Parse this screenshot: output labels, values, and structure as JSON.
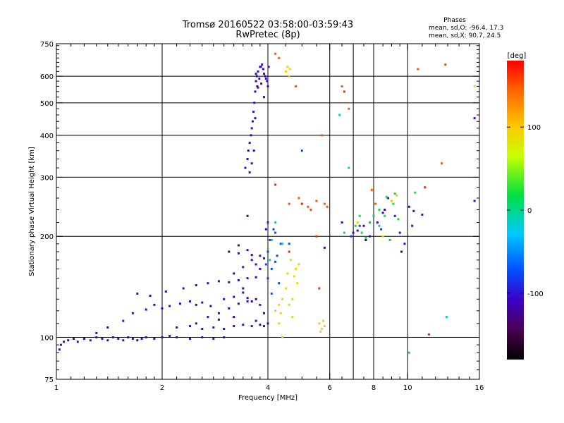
{
  "chart_data": {
    "type": "scatter",
    "title_line1": "Tromsø 20160522 03:58:00-03:59:43",
    "title_line2": "RwPretec (8p)",
    "info": {
      "heading": "Phases",
      "line_o": "mean, sd,O: -96.4, 17.3",
      "line_x": "mean, sd,X:  90.7, 24.5"
    },
    "xlabel": "Frequency [MHz]",
    "ylabel": "Stationary phase Virtual Height [km]",
    "xscale": "log",
    "yscale": "log",
    "xlim": [
      1,
      16
    ],
    "ylim": [
      75,
      750
    ],
    "xticks": [
      1,
      2,
      4,
      6,
      8,
      10,
      16
    ],
    "yticks": [
      75,
      100,
      200,
      300,
      400,
      500,
      600,
      750
    ],
    "xgrid": [
      2,
      4,
      6,
      7,
      8,
      10
    ],
    "ygrid": [
      100,
      200,
      300,
      400,
      500,
      600
    ],
    "grid": true,
    "colorbar": {
      "label": "[deg]",
      "range": [
        -180,
        180
      ],
      "ticks": [
        100,
        0,
        -100
      ],
      "colormap": "rainbow (black-purple-blue-cyan-green-yellow-orange-red)"
    },
    "series": [
      {
        "phase_deg": -105,
        "points": [
          [
            1.02,
            92
          ],
          [
            1.03,
            95
          ],
          [
            1.05,
            97
          ],
          [
            1.08,
            98
          ],
          [
            1.12,
            99
          ],
          [
            1.15,
            97
          ],
          [
            1.2,
            99
          ],
          [
            1.25,
            98
          ],
          [
            1.3,
            100
          ],
          [
            1.35,
            99
          ],
          [
            1.4,
            98
          ],
          [
            1.45,
            100
          ],
          [
            1.5,
            99
          ],
          [
            1.55,
            98
          ],
          [
            1.6,
            100
          ],
          [
            1.65,
            99
          ],
          [
            1.7,
            98
          ],
          [
            1.75,
            99
          ],
          [
            1.8,
            100
          ],
          [
            1.9,
            99
          ],
          [
            2.0,
            100
          ],
          [
            2.1,
            101
          ],
          [
            2.2,
            100
          ],
          [
            2.4,
            99
          ],
          [
            2.6,
            100
          ],
          [
            2.8,
            99
          ],
          [
            3.0,
            100
          ],
          [
            1.3,
            103
          ],
          [
            1.4,
            107
          ],
          [
            1.55,
            112
          ],
          [
            1.65,
            118
          ],
          [
            1.8,
            121
          ],
          [
            1.9,
            125
          ],
          [
            2.0,
            122
          ],
          [
            2.1,
            124
          ],
          [
            2.25,
            126
          ],
          [
            2.4,
            128
          ],
          [
            2.5,
            125
          ],
          [
            2.6,
            127
          ],
          [
            2.75,
            124
          ],
          [
            3.0,
            130
          ],
          [
            3.2,
            132
          ],
          [
            3.4,
            136
          ],
          [
            3.5,
            131
          ],
          [
            3.6,
            128
          ],
          [
            3.8,
            125
          ],
          [
            2.5,
            110
          ],
          [
            2.7,
            115
          ],
          [
            2.9,
            118
          ],
          [
            3.1,
            122
          ],
          [
            3.3,
            126
          ],
          [
            3.5,
            128
          ],
          [
            3.7,
            112
          ],
          [
            3.9,
            108
          ],
          [
            2.2,
            107
          ],
          [
            2.4,
            108
          ],
          [
            2.6,
            106
          ],
          [
            2.8,
            107
          ],
          [
            3.0,
            106
          ],
          [
            3.2,
            108
          ],
          [
            3.4,
            109
          ],
          [
            3.6,
            108
          ],
          [
            3.8,
            109
          ],
          [
            4.0,
            110
          ],
          [
            2.5,
            143
          ],
          [
            2.7,
            145
          ],
          [
            2.9,
            147
          ],
          [
            3.1,
            146
          ],
          [
            3.3,
            148
          ],
          [
            3.5,
            150
          ],
          [
            3.7,
            151
          ],
          [
            1.7,
            135
          ],
          [
            1.85,
            133
          ],
          [
            2.05,
            137
          ],
          [
            2.3,
            140
          ],
          [
            3.2,
            155
          ],
          [
            3.4,
            162
          ],
          [
            3.6,
            170
          ],
          [
            3.8,
            175
          ],
          [
            3.9,
            172
          ],
          [
            3.3,
            178
          ],
          [
            3.5,
            182
          ],
          [
            3.7,
            165
          ],
          [
            3.95,
            210
          ],
          [
            4.0,
            220
          ],
          [
            3.45,
            320
          ],
          [
            3.5,
            340
          ],
          [
            3.52,
            360
          ],
          [
            3.55,
            380
          ],
          [
            3.58,
            400
          ],
          [
            3.6,
            420
          ],
          [
            3.62,
            440
          ],
          [
            3.64,
            470
          ],
          [
            3.66,
            500
          ],
          [
            3.68,
            540
          ],
          [
            3.7,
            580
          ],
          [
            3.72,
            600
          ],
          [
            3.75,
            620
          ],
          [
            3.8,
            640
          ],
          [
            3.85,
            650
          ],
          [
            3.9,
            610
          ],
          [
            3.95,
            590
          ],
          [
            4.0,
            560
          ],
          [
            3.55,
            310
          ],
          [
            3.6,
            330
          ],
          [
            3.65,
            360
          ],
          [
            3.68,
            450
          ],
          [
            3.73,
            560
          ],
          [
            3.78,
            590
          ],
          [
            3.83,
            570
          ],
          [
            3.88,
            630
          ],
          [
            3.93,
            600
          ],
          [
            3.98,
            580
          ],
          [
            3.7,
            610
          ],
          [
            3.75,
            555
          ],
          [
            3.82,
            640
          ],
          [
            3.9,
            520
          ],
          [
            4.02,
            640
          ],
          [
            7.2,
            208
          ],
          [
            7.5,
            215
          ],
          [
            7.8,
            200
          ],
          [
            8.2,
            220
          ],
          [
            8.5,
            235
          ],
          [
            8.8,
            260
          ],
          [
            9.2,
            230
          ],
          [
            9.5,
            205
          ],
          [
            10.1,
            245
          ],
          [
            10.4,
            238
          ],
          [
            11,
            232
          ],
          [
            15.5,
            255
          ],
          [
            5.8,
            185
          ],
          [
            7.0,
            205
          ],
          [
            6.5,
            220
          ],
          [
            9.8,
            190
          ],
          [
            10.3,
            215
          ]
        ]
      },
      {
        "phase_deg": -130,
        "points": [
          [
            3.1,
            180
          ],
          [
            3.3,
            188
          ],
          [
            3.6,
            176
          ],
          [
            3.8,
            160
          ],
          [
            3.4,
            140
          ],
          [
            3.7,
            130
          ],
          [
            3.9,
            118
          ],
          [
            3.2,
            115
          ],
          [
            2.9,
            113
          ],
          [
            3.5,
            230
          ],
          [
            7.6,
            195
          ],
          [
            8.6,
            240
          ],
          [
            9.6,
            180
          ],
          [
            15.5,
            450
          ]
        ]
      },
      {
        "phase_deg": -75,
        "points": [
          [
            4.0,
            150
          ],
          [
            4.1,
            160
          ],
          [
            4.2,
            168
          ],
          [
            4.0,
            180
          ],
          [
            4.05,
            195
          ],
          [
            4.15,
            210
          ],
          [
            4.25,
            175
          ],
          [
            4.3,
            145
          ],
          [
            4.1,
            135
          ],
          [
            4.2,
            205
          ],
          [
            3.95,
            165
          ],
          [
            4.35,
            190
          ],
          [
            6.9,
            200
          ],
          [
            7.3,
            215
          ],
          [
            8.0,
            230
          ],
          [
            8.4,
            210
          ],
          [
            5.0,
            360
          ],
          [
            4.6,
            190
          ]
        ]
      },
      {
        "phase_deg": 95,
        "points": [
          [
            4.2,
            120
          ],
          [
            4.3,
            125
          ],
          [
            4.4,
            130
          ],
          [
            4.35,
            118
          ],
          [
            4.6,
            125
          ],
          [
            4.7,
            130
          ],
          [
            4.5,
            140
          ],
          [
            4.75,
            152
          ],
          [
            4.8,
            160
          ],
          [
            4.9,
            165
          ],
          [
            4.65,
            170
          ],
          [
            4.55,
            155
          ],
          [
            4.85,
            145
          ],
          [
            5.6,
            110
          ],
          [
            5.7,
            106
          ],
          [
            5.75,
            112
          ],
          [
            5.8,
            108
          ],
          [
            5.65,
            104
          ],
          [
            4.5,
            620
          ],
          [
            4.55,
            640
          ],
          [
            4.6,
            600
          ],
          [
            4.62,
            630
          ],
          [
            4.3,
            110
          ],
          [
            4.7,
            115
          ],
          [
            4.4,
            100
          ],
          [
            9.0,
            255
          ],
          [
            9.3,
            265
          ],
          [
            7.2,
            220
          ],
          [
            8.5,
            200
          ],
          [
            15.5,
            560
          ]
        ]
      },
      {
        "phase_deg": 150,
        "points": [
          [
            5.0,
            250
          ],
          [
            5.2,
            245
          ],
          [
            5.5,
            255
          ],
          [
            5.3,
            240
          ],
          [
            4.9,
            260
          ],
          [
            4.6,
            250
          ],
          [
            5.8,
            250
          ],
          [
            5.9,
            245
          ],
          [
            7.9,
            275
          ],
          [
            12.5,
            330
          ],
          [
            12.8,
            650
          ],
          [
            4.3,
            680
          ],
          [
            5.7,
            400
          ],
          [
            6.5,
            560
          ],
          [
            4.8,
            560
          ],
          [
            10.7,
            630
          ],
          [
            6.8,
            480
          ],
          [
            4.2,
            700
          ],
          [
            8.1,
            250
          ]
        ]
      },
      {
        "phase_deg": 165,
        "points": [
          [
            4.2,
            285
          ],
          [
            5.0,
            250
          ],
          [
            5.6,
            140
          ],
          [
            4.6,
            180
          ],
          [
            6.6,
            540
          ],
          [
            11.5,
            102
          ],
          [
            5.5,
            200
          ],
          [
            11.2,
            280
          ]
        ]
      },
      {
        "phase_deg": 20,
        "points": [
          [
            7.4,
            205
          ],
          [
            8.0,
            230
          ],
          [
            8.7,
            262
          ],
          [
            9.1,
            250
          ],
          [
            7.1,
            215
          ],
          [
            7.6,
            198
          ],
          [
            8.9,
            195
          ],
          [
            7.8,
            220
          ],
          [
            8.3,
            240
          ],
          [
            9.4,
            225
          ],
          [
            10.5,
            270
          ],
          [
            7.3,
            230
          ],
          [
            9.2,
            268
          ],
          [
            8.6,
            230
          ]
        ]
      },
      {
        "phase_deg": -15,
        "points": [
          [
            4.2,
            220
          ],
          [
            4.4,
            190
          ],
          [
            4.05,
            170
          ],
          [
            6.8,
            320
          ],
          [
            6.4,
            460
          ],
          [
            12.9,
            115
          ],
          [
            10.1,
            90
          ],
          [
            8.3,
            215
          ],
          [
            6.6,
            205
          ],
          [
            4.1,
            195
          ]
        ]
      }
    ]
  }
}
